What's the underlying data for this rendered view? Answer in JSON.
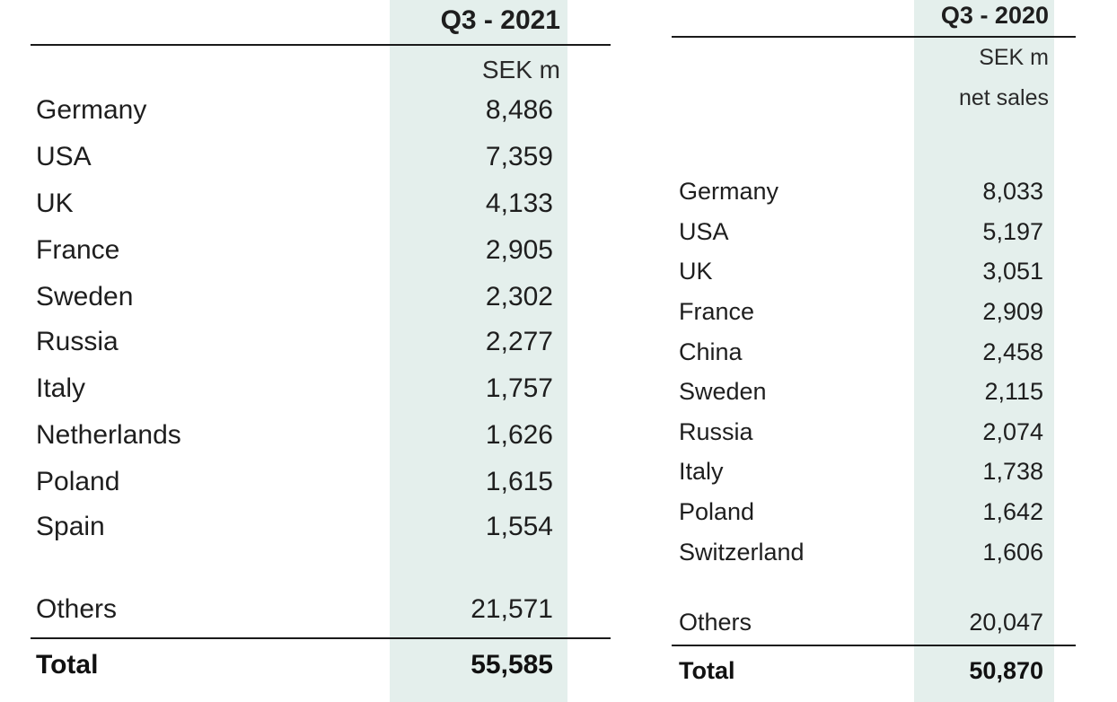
{
  "q3_2021": {
    "header": "Q3 - 2021",
    "unit": "SEK m",
    "rows": [
      {
        "country": "Germany",
        "value": "8,486"
      },
      {
        "country": "USA",
        "value": "7,359"
      },
      {
        "country": "UK",
        "value": "4,133"
      },
      {
        "country": "France",
        "value": "2,905"
      },
      {
        "country": "Sweden",
        "value": "2,302"
      },
      {
        "country": "Russia",
        "value": "2,277"
      },
      {
        "country": "Italy",
        "value": "1,757"
      },
      {
        "country": "Netherlands",
        "value": "1,626"
      },
      {
        "country": "Poland",
        "value": "1,615"
      },
      {
        "country": "Spain",
        "value": "1,554"
      }
    ],
    "others": {
      "label": "Others",
      "value": "21,571"
    },
    "total": {
      "label": "Total",
      "value": "55,585"
    }
  },
  "q3_2020": {
    "header": "Q3 - 2020",
    "unit_line1": "SEK m",
    "unit_line2": "net sales",
    "rows": [
      {
        "country": "Germany",
        "value": "8,033"
      },
      {
        "country": "USA",
        "value": "5,197"
      },
      {
        "country": "UK",
        "value": "3,051"
      },
      {
        "country": "France",
        "value": "2,909"
      },
      {
        "country": "China",
        "value": "2,458"
      },
      {
        "country": "Sweden",
        "value": "2,115"
      },
      {
        "country": "Russia",
        "value": "2,074"
      },
      {
        "country": "Italy",
        "value": "1,738"
      },
      {
        "country": "Poland",
        "value": "1,642"
      },
      {
        "country": "Switzerland",
        "value": "1,606"
      }
    ],
    "others": {
      "label": "Others",
      "value": "20,047"
    },
    "total": {
      "label": "Total",
      "value": "50,870"
    }
  },
  "colors": {
    "column_shade": "#e4efec",
    "text": "#1e1e1e"
  }
}
